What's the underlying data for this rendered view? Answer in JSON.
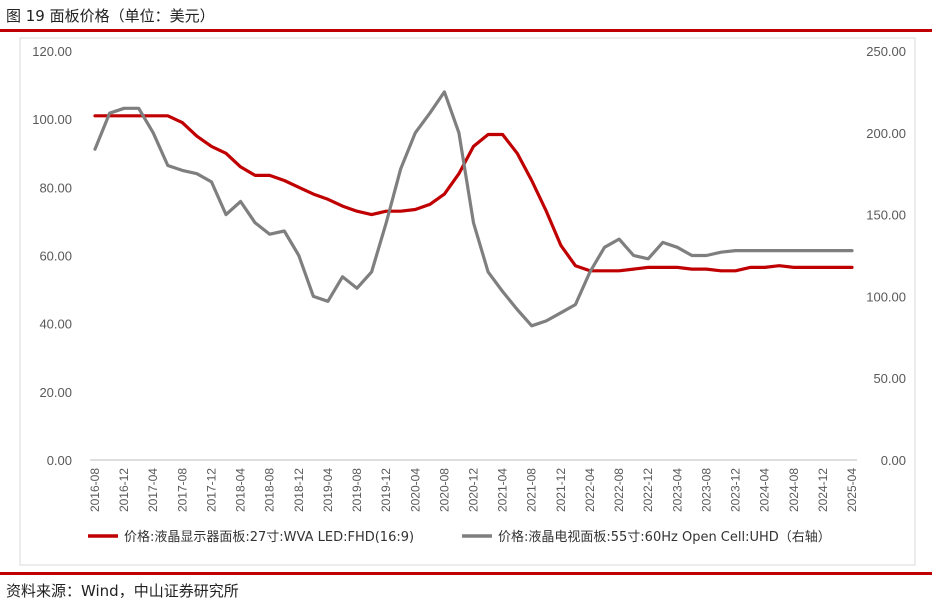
{
  "figure": {
    "title": "图 19 面板价格（单位：美元）",
    "source": "资料来源：Wind，中山证券研究所",
    "accent_color": "#c00000"
  },
  "chart_data": {
    "type": "line",
    "x": [
      "2016-08",
      "2016-10",
      "2016-12",
      "2017-02",
      "2017-04",
      "2017-06",
      "2017-08",
      "2017-10",
      "2017-12",
      "2018-02",
      "2018-04",
      "2018-06",
      "2018-08",
      "2018-10",
      "2018-12",
      "2019-02",
      "2019-04",
      "2019-06",
      "2019-08",
      "2019-10",
      "2019-12",
      "2020-02",
      "2020-04",
      "2020-06",
      "2020-08",
      "2020-10",
      "2020-12",
      "2021-02",
      "2021-04",
      "2021-06",
      "2021-08",
      "2021-10",
      "2021-12",
      "2022-02",
      "2022-04",
      "2022-06",
      "2022-08",
      "2022-10",
      "2022-12",
      "2023-02",
      "2023-04",
      "2023-06",
      "2023-08",
      "2023-10",
      "2023-12",
      "2024-02",
      "2024-04",
      "2024-06",
      "2024-08",
      "2024-10",
      "2024-12",
      "2025-02",
      "2025-04"
    ],
    "x_tick_labels": [
      "2016-08",
      "2016-12",
      "2017-04",
      "2017-08",
      "2017-12",
      "2018-04",
      "2018-08",
      "2018-12",
      "2019-04",
      "2019-08",
      "2019-12",
      "2020-04",
      "2020-08",
      "2020-12",
      "2021-04",
      "2021-08",
      "2021-12",
      "2022-04",
      "2022-08",
      "2022-12",
      "2023-04",
      "2023-08",
      "2023-12",
      "2024-04",
      "2024-08",
      "2024-12",
      "2025-04"
    ],
    "y_left": {
      "ylim": [
        0,
        120
      ],
      "ticks": [
        "0.00",
        "20.00",
        "40.00",
        "60.00",
        "80.00",
        "100.00",
        "120.00"
      ]
    },
    "y_right": {
      "ylim": [
        0,
        250
      ],
      "ticks": [
        "0.00",
        "50.00",
        "100.00",
        "150.00",
        "200.00",
        "250.00"
      ]
    },
    "series": [
      {
        "name": "价格:液晶显示器面板:27寸:WVA LED:FHD(16:9)",
        "axis": "left",
        "color": "#c00000",
        "values": [
          101,
          101,
          101,
          101,
          101,
          101,
          99,
          95,
          92,
          90,
          86,
          83.5,
          83.5,
          82,
          80,
          78,
          76.5,
          74.5,
          73,
          72,
          73,
          73,
          73.5,
          75,
          78,
          84,
          92,
          95.5,
          95.5,
          90,
          82,
          73,
          63,
          57,
          55.5,
          55.5,
          55.5,
          56,
          56.5,
          56.5,
          56.5,
          56,
          56,
          55.5,
          55.5,
          56.5,
          56.5,
          57,
          56.5,
          56.5,
          56.5,
          56.5,
          56.5
        ]
      },
      {
        "name": "价格:液晶电视面板:55寸:60Hz Open Cell:UHD（右轴）",
        "axis": "right",
        "color": "#7f7f7f",
        "values": [
          190,
          212,
          215,
          215,
          200,
          180,
          177,
          175,
          170,
          150,
          158,
          145,
          138,
          140,
          125,
          100,
          97,
          112,
          105,
          115,
          145,
          178,
          200,
          212,
          225,
          200,
          145,
          115,
          103,
          92,
          82,
          85,
          90,
          95,
          115,
          130,
          135,
          125,
          123,
          133,
          130,
          125,
          125,
          127,
          128,
          128,
          128,
          128,
          128,
          128,
          128,
          128,
          128
        ]
      }
    ],
    "legend": {
      "placement": "bottom",
      "items": [
        "价格:液晶显示器面板:27寸:WVA LED:FHD(16:9)",
        "价格:液晶电视面板:55寸:60Hz Open Cell:UHD（右轴）"
      ]
    },
    "grid": false
  }
}
